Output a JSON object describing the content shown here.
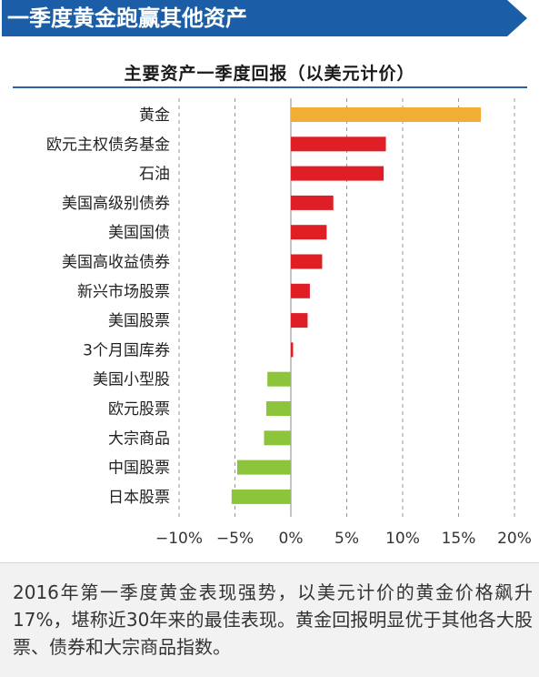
{
  "banner": {
    "title": "一季度黄金跑赢其他资产"
  },
  "chart_data": {
    "type": "bar",
    "orientation": "horizontal",
    "title": "主要资产一季度回报（以美元计价）",
    "categories": [
      "黄金",
      "欧元主权债务基金",
      "石油",
      "美国高级别债券",
      "美国国债",
      "美国高收益债券",
      "新兴市场股票",
      "美国股票",
      "3个月国库券",
      "美国小型股",
      "欧元股票",
      "大宗商品",
      "中国股票",
      "日本股票"
    ],
    "values": [
      17,
      8.5,
      8.3,
      3.8,
      3.2,
      2.8,
      1.7,
      1.5,
      0.2,
      -2.1,
      -2.2,
      -2.4,
      -4.8,
      -5.3
    ],
    "tick_labels": [
      "−10%",
      "−5%",
      "0%",
      "5%",
      "10%",
      "15%",
      "20%"
    ],
    "xlim": [
      -10,
      20
    ],
    "grid": true,
    "colors": {
      "highlight": "#f2ad36",
      "positive": "#e01e26",
      "negative": "#8cc43c"
    }
  },
  "caption": "2016年第一季度黄金表现强势，以美元计价的黄金价格飙升17%，堪称近30年来的最佳表现。黄金回报明显优于其他各大股票、债券和大宗商品指数。"
}
